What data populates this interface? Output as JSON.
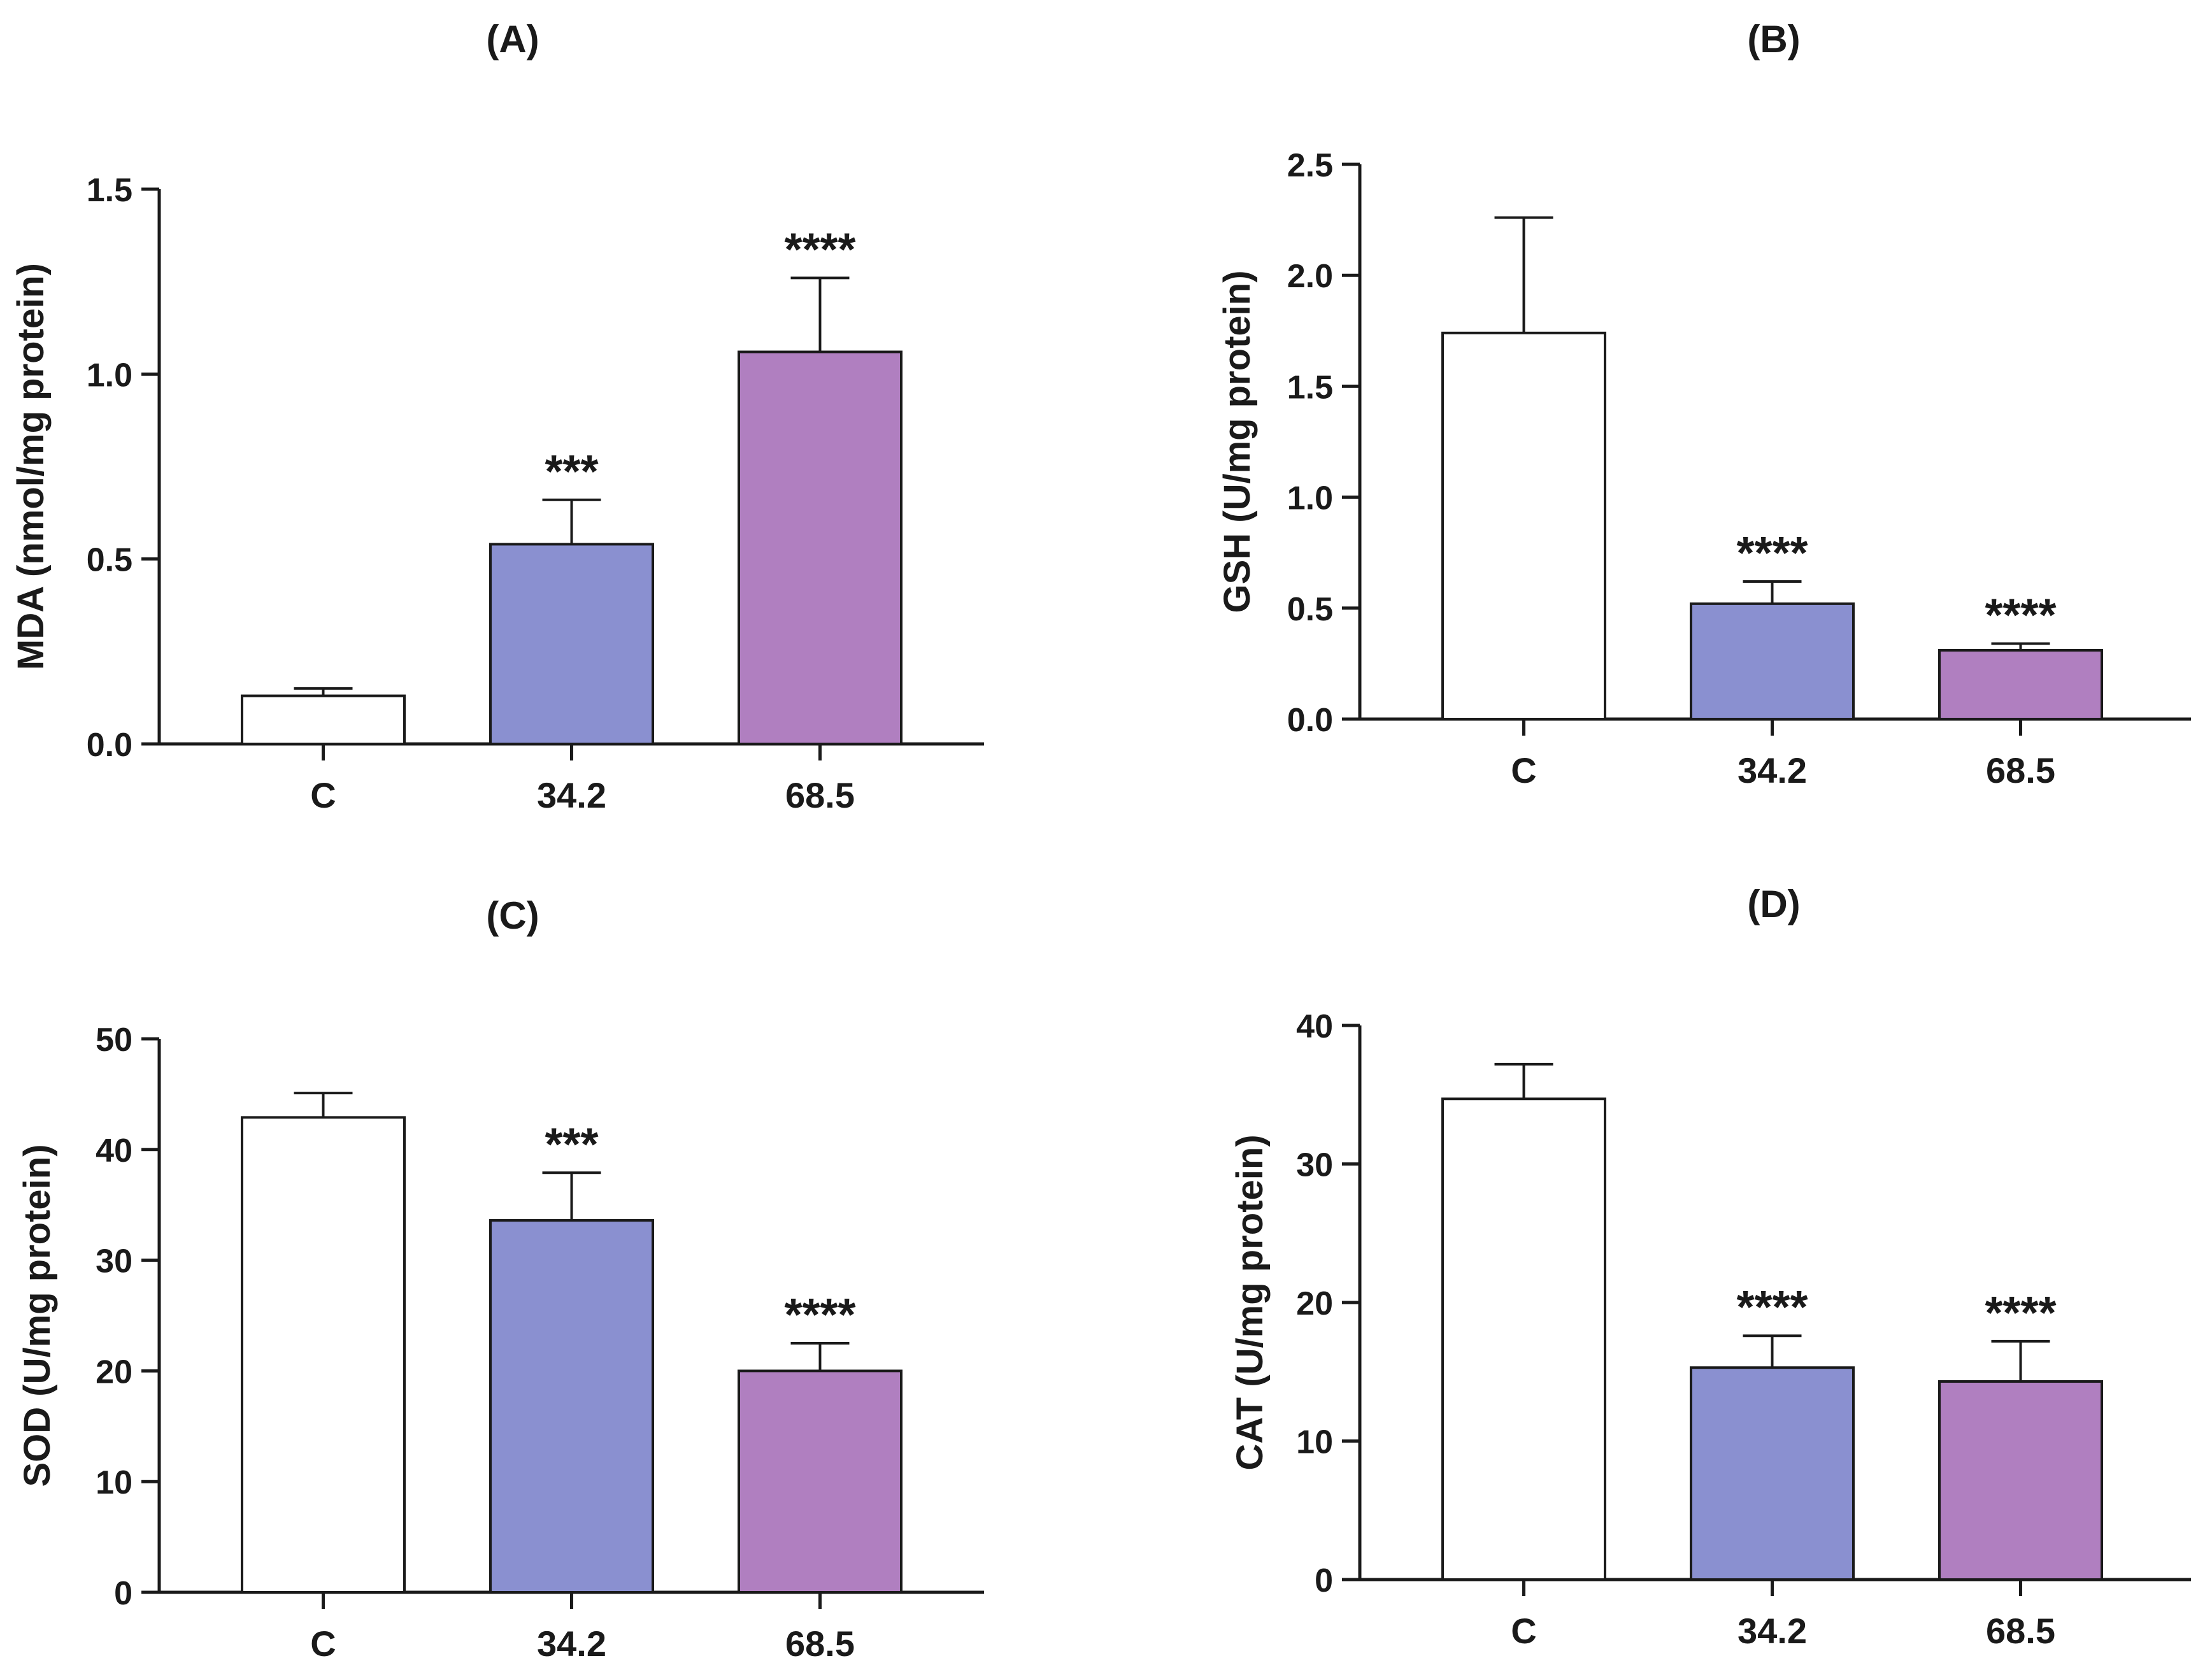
{
  "chart_data": [
    {
      "type": "bar",
      "title": "(A)",
      "ylabel": "MDA (nmol/mg protein)",
      "categories": [
        "C",
        "34.2",
        "68.5"
      ],
      "values": [
        0.13,
        0.54,
        1.06
      ],
      "errors": [
        0.02,
        0.12,
        0.2
      ],
      "annotations": [
        "",
        "***",
        "****"
      ],
      "ylim": [
        0,
        1.5
      ],
      "yticks": [
        "0.0",
        "0.5",
        "1.0",
        "1.5"
      ],
      "colors": [
        "#ffffff",
        "#8a90d0",
        "#b07fc0"
      ]
    },
    {
      "type": "bar",
      "title": "(B)",
      "ylabel": "GSH (U/mg protein)",
      "categories": [
        "C",
        "34.2",
        "68.5"
      ],
      "values": [
        1.74,
        0.52,
        0.31
      ],
      "errors": [
        0.52,
        0.1,
        0.03
      ],
      "annotations": [
        "",
        "****",
        "****"
      ],
      "ylim": [
        0,
        2.5
      ],
      "yticks": [
        "0.0",
        "0.5",
        "1.0",
        "1.5",
        "2.0",
        "2.5"
      ],
      "colors": [
        "#ffffff",
        "#8a90d0",
        "#b07fc0"
      ]
    },
    {
      "type": "bar",
      "title": "(C)",
      "ylabel": "SOD (U/mg protein)",
      "categories": [
        "C",
        "34.2",
        "68.5"
      ],
      "values": [
        42.9,
        33.6,
        20.0
      ],
      "errors": [
        2.2,
        4.3,
        2.5
      ],
      "annotations": [
        "",
        "***",
        "****"
      ],
      "ylim": [
        0,
        50
      ],
      "yticks": [
        "0",
        "10",
        "20",
        "30",
        "40",
        "50"
      ],
      "colors": [
        "#ffffff",
        "#8a90d0",
        "#b07fc0"
      ]
    },
    {
      "type": "bar",
      "title": "(D)",
      "ylabel": "CAT (U/mg protein)",
      "categories": [
        "C",
        "34.2",
        "68.5"
      ],
      "values": [
        34.7,
        15.3,
        14.3
      ],
      "errors": [
        2.5,
        2.3,
        2.9
      ],
      "annotations": [
        "",
        "****",
        "****"
      ],
      "ylim": [
        0,
        40
      ],
      "yticks": [
        "0",
        "10",
        "20",
        "30",
        "40"
      ],
      "colors": [
        "#ffffff",
        "#8a90d0",
        "#b07fc0"
      ]
    }
  ]
}
